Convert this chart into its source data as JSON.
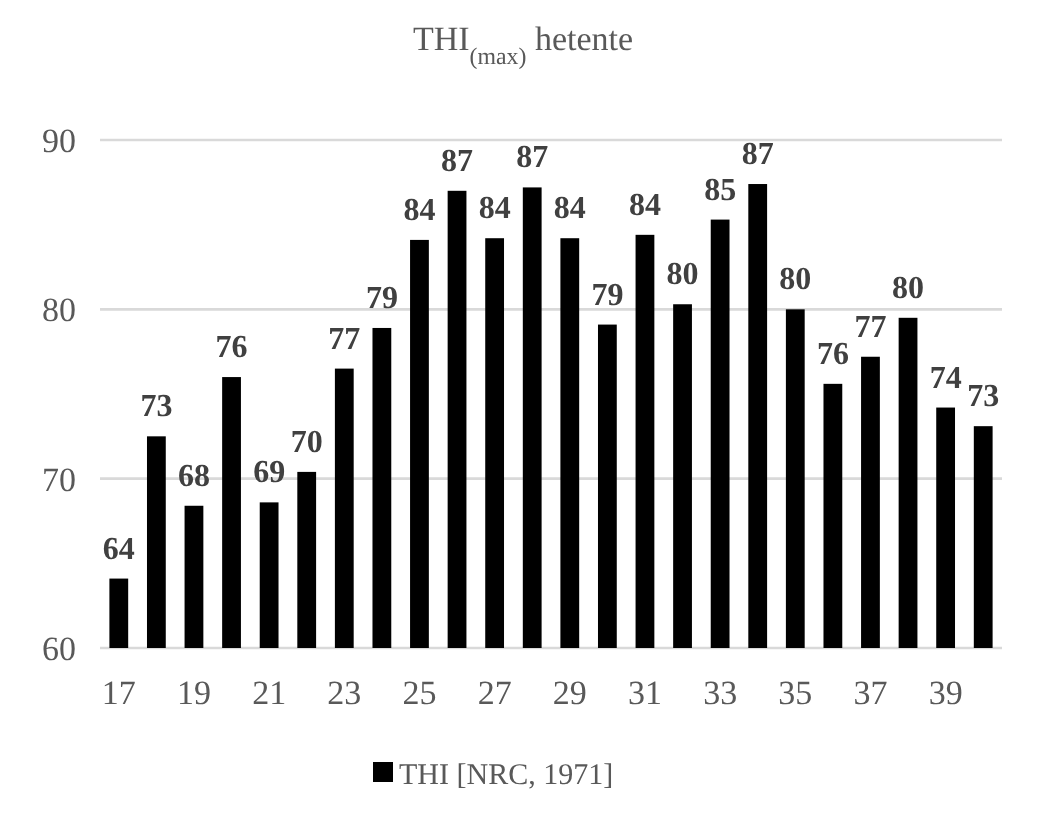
{
  "chart_data": {
    "type": "bar",
    "title": "THI$_{(max)}$ hetente",
    "categories": [
      "17",
      null,
      "19",
      null,
      "21",
      null,
      "23",
      null,
      "25",
      null,
      "27",
      null,
      "29",
      null,
      "31",
      null,
      "33",
      null,
      "35",
      null,
      "37",
      null,
      "39",
      null
    ],
    "series": [
      {
        "name": "THI [NRC, 1971]",
        "color": "#000000",
        "values": [
          64.1,
          72.5,
          68.4,
          76.0,
          68.6,
          70.4,
          76.5,
          78.9,
          84.1,
          87.0,
          84.2,
          87.2,
          84.2,
          79.1,
          84.4,
          80.3,
          85.3,
          87.4,
          80.0,
          75.6,
          77.2,
          79.5,
          74.2,
          73.1
        ],
        "value_labels": [
          "64",
          "73",
          "68",
          "76",
          "69",
          "70",
          "77",
          "79",
          "84",
          "87",
          "84",
          "87",
          "84",
          "79",
          "84",
          "80",
          "85",
          "87",
          "80",
          "76",
          "77",
          "80",
          "74",
          "73"
        ]
      }
    ],
    "ylim": [
      60,
      90
    ],
    "yticks": [
      60,
      70,
      80,
      90
    ],
    "grid": "y",
    "legend": "bottom"
  }
}
